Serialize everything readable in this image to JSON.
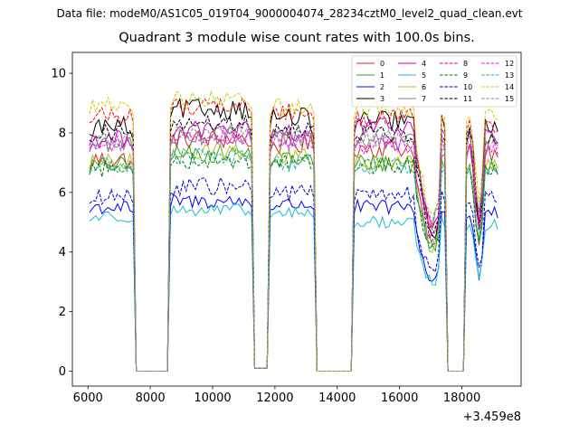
{
  "figure": {
    "suptitle": "Data file: modeM0/AS1C05_019T04_9000004074_28234cztM0_level2_quad_clean.evt"
  },
  "chart_data": {
    "type": "line",
    "title": "Quadrant 3 module wise count rates with 100.0s bins.",
    "xlabel": "",
    "ylabel": "",
    "x_offset_label": "+3.459e8",
    "xlim": [
      5500,
      19900
    ],
    "ylim": [
      -0.5,
      10.7
    ],
    "xticks": [
      6000,
      8000,
      10000,
      12000,
      14000,
      16000,
      18000
    ],
    "yticks": [
      0,
      2,
      4,
      6,
      8,
      10
    ],
    "legend_location": "upper-right",
    "legend_columns": 4,
    "segment_breaks_x": [
      [
        6050,
        7450
      ],
      [
        7550,
        8550
      ],
      [
        8650,
        11250
      ],
      [
        11350,
        11750
      ],
      [
        11850,
        13250
      ],
      [
        13350,
        14450
      ],
      [
        14550,
        17450
      ],
      [
        17550,
        18050
      ],
      [
        18150,
        19150
      ]
    ],
    "series": [
      {
        "name": "0",
        "color": "#d62728",
        "dash": "solid",
        "levels": [
          7.1,
          0.0,
          7.8,
          0.1,
          7.6,
          0.0,
          7.5,
          0.0,
          7.4
        ],
        "noise": 0.35,
        "dip_scale": 0.45
      },
      {
        "name": "1",
        "color": "#2ca02c",
        "dash": "solid",
        "levels": [
          6.9,
          0.0,
          7.3,
          0.1,
          7.1,
          0.0,
          7.0,
          0.0,
          6.9
        ],
        "noise": 0.3,
        "dip_scale": 0.4
      },
      {
        "name": "2",
        "color": "#0000ff",
        "dash": "solid",
        "levels": [
          5.5,
          0.0,
          5.7,
          0.1,
          5.6,
          0.0,
          5.5,
          0.0,
          5.3
        ],
        "noise": 0.25,
        "dip_scale": 0.45
      },
      {
        "name": "3",
        "color": "#000000",
        "dash": "solid",
        "levels": [
          8.2,
          0.0,
          8.8,
          0.1,
          8.5,
          0.0,
          8.4,
          0.0,
          8.3
        ],
        "noise": 0.35,
        "dip_scale": 0.45
      },
      {
        "name": "4",
        "color": "#c000c0",
        "dash": "solid",
        "levels": [
          7.8,
          0.0,
          8.1,
          0.1,
          8.0,
          0.0,
          8.2,
          0.0,
          7.9
        ],
        "noise": 0.3,
        "dip_scale": 0.4
      },
      {
        "name": "5",
        "color": "#17becf",
        "dash": "solid",
        "levels": [
          5.2,
          0.0,
          5.4,
          0.1,
          5.3,
          0.0,
          5.0,
          0.0,
          4.9
        ],
        "noise": 0.2,
        "dip_scale": 0.4
      },
      {
        "name": "6",
        "color": "#bcbd22",
        "dash": "solid",
        "levels": [
          7.0,
          0.0,
          7.4,
          0.1,
          7.2,
          0.0,
          7.0,
          0.0,
          7.0
        ],
        "noise": 0.3,
        "dip_scale": 0.4
      },
      {
        "name": "7",
        "color": "#7f7f7f",
        "dash": "solid",
        "levels": [
          7.6,
          0.0,
          7.9,
          0.1,
          7.8,
          0.0,
          7.7,
          0.0,
          7.8
        ],
        "noise": 0.3,
        "dip_scale": 0.35
      },
      {
        "name": "8",
        "color": "#ff0000",
        "dash": "dashed",
        "levels": [
          8.6,
          0.0,
          8.9,
          0.1,
          8.7,
          0.0,
          8.5,
          0.0,
          8.3
        ],
        "noise": 0.3,
        "dip_scale": 0.45
      },
      {
        "name": "9",
        "color": "#008000",
        "dash": "dashed",
        "levels": [
          6.8,
          0.0,
          7.1,
          0.1,
          7.0,
          0.0,
          6.9,
          0.0,
          6.8
        ],
        "noise": 0.3,
        "dip_scale": 0.4
      },
      {
        "name": "10",
        "color": "#0000cd",
        "dash": "dashed",
        "levels": [
          5.8,
          0.0,
          6.2,
          0.1,
          6.0,
          0.0,
          5.9,
          0.0,
          5.8
        ],
        "noise": 0.3,
        "dip_scale": 0.45
      },
      {
        "name": "11",
        "color": "#000000",
        "dash": "dashed",
        "levels": [
          8.0,
          0.0,
          8.3,
          0.1,
          8.1,
          0.0,
          8.0,
          0.0,
          7.9
        ],
        "noise": 0.3,
        "dip_scale": 0.45
      },
      {
        "name": "12",
        "color": "#ff00ff",
        "dash": "dashed",
        "levels": [
          7.6,
          0.0,
          7.9,
          0.1,
          7.7,
          0.0,
          7.6,
          0.0,
          7.5
        ],
        "noise": 0.3,
        "dip_scale": 0.4
      },
      {
        "name": "13",
        "color": "#20b2aa",
        "dash": "dashed",
        "levels": [
          6.9,
          0.0,
          7.2,
          0.1,
          7.0,
          0.0,
          6.9,
          0.0,
          6.8
        ],
        "noise": 0.3,
        "dip_scale": 0.4
      },
      {
        "name": "14",
        "color": "#cccc00",
        "dash": "dashed",
        "levels": [
          8.9,
          0.0,
          9.1,
          0.1,
          8.9,
          0.0,
          8.8,
          0.0,
          8.7
        ],
        "noise": 0.3,
        "dip_scale": 0.4
      },
      {
        "name": "15",
        "color": "#8c8c8c",
        "dash": "dashed",
        "levels": [
          7.7,
          0.0,
          8.0,
          0.1,
          7.8,
          0.0,
          7.8,
          0.0,
          7.7
        ],
        "noise": 0.3,
        "dip_scale": 0.35
      }
    ]
  }
}
